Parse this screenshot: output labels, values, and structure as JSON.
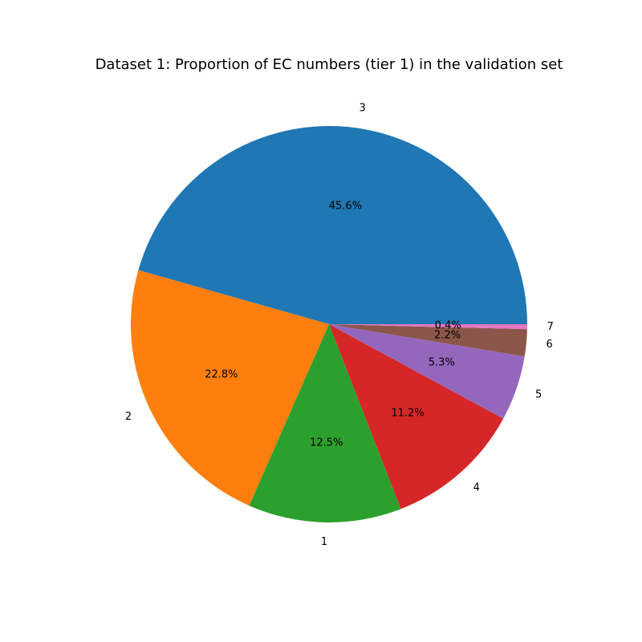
{
  "chart_data": {
    "type": "pie",
    "title": "Dataset 1: Proportion of EC numbers (tier 1) in the validation set",
    "slices": [
      {
        "label": "3",
        "percent": 45.6,
        "percent_label": "45.6%",
        "color": "#1f77b4"
      },
      {
        "label": "2",
        "percent": 22.8,
        "percent_label": "22.8%",
        "color": "#ff7f0e"
      },
      {
        "label": "1",
        "percent": 12.5,
        "percent_label": "12.5%",
        "color": "#2ca02c"
      },
      {
        "label": "4",
        "percent": 11.2,
        "percent_label": "11.2%",
        "color": "#d62728"
      },
      {
        "label": "5",
        "percent": 5.3,
        "percent_label": "5.3%",
        "color": "#9467bd"
      },
      {
        "label": "6",
        "percent": 2.2,
        "percent_label": "2.2%",
        "color": "#8c564b"
      },
      {
        "label": "7",
        "percent": 0.4,
        "percent_label": "0.4%",
        "color": "#e377c2"
      }
    ],
    "start_angle_deg": 0,
    "direction": "counterclockwise"
  }
}
